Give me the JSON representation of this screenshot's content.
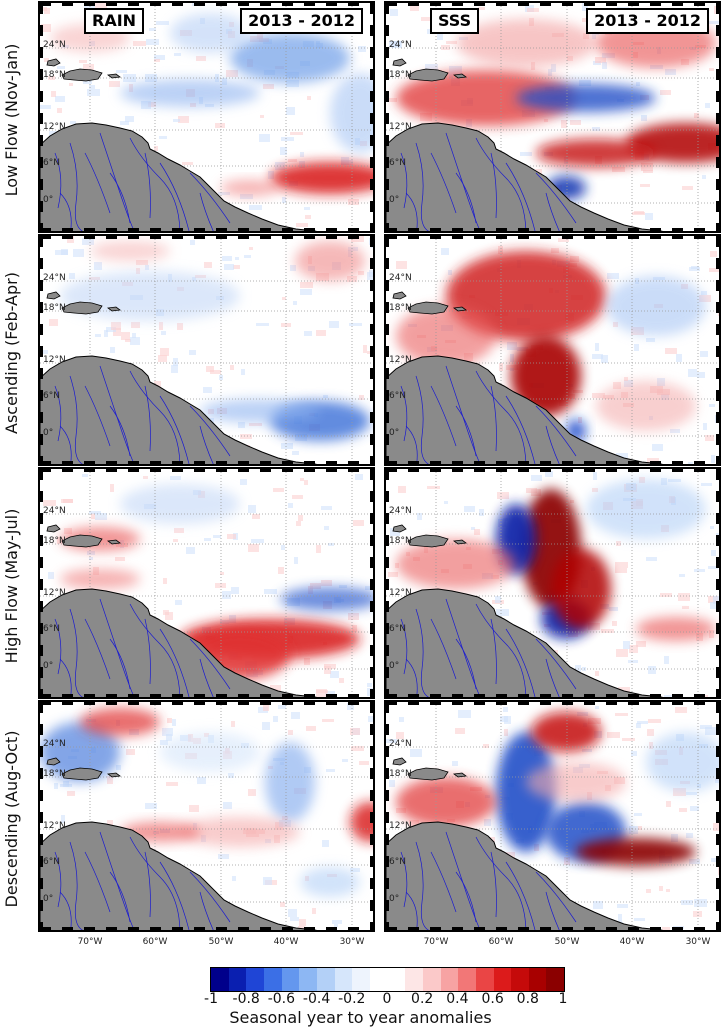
{
  "headers": {
    "rain": "RAIN",
    "sss": "SSS",
    "diff_left": "2013 - 2012",
    "diff_right": "2013 - 2012"
  },
  "rows": [
    {
      "label": "Low Flow (Nov-Jan)"
    },
    {
      "label": "Ascending (Feb-Apr)"
    },
    {
      "label": "High Flow (May-Jul)"
    },
    {
      "label": "Descending (Aug-Oct)"
    }
  ],
  "lat_labels": [
    "24°N",
    "18°N",
    "12°N",
    "6°N",
    "0°"
  ],
  "lon_labels": [
    "70°W",
    "60°W",
    "50°W",
    "40°W",
    "30°W"
  ],
  "colorbar": {
    "ticks": [
      "-1",
      "-0.8",
      "-0.6",
      "-0.4",
      "-0.2",
      "0",
      "0.2",
      "0.4",
      "0.6",
      "0.8",
      "1"
    ],
    "range": [
      -1,
      1
    ],
    "title": "Seasonal year to year anomalies",
    "colors": [
      "#00008b",
      "#0a1fb0",
      "#1f45d6",
      "#3b6fe6",
      "#6497ee",
      "#8db7f3",
      "#b3d0f7",
      "#d6e6fb",
      "#eef4fd",
      "#ffffff",
      "#ffffff",
      "#fde6e6",
      "#fbc9c9",
      "#f7a3a3",
      "#f27777",
      "#ea4545",
      "#dc1b1b",
      "#c50a0a",
      "#a80000",
      "#8b0000"
    ]
  },
  "style": {
    "land_color": "#8a8a8a",
    "river_color": "#1a1ad0",
    "grid_color": "#999999",
    "positive_color": "#d01010",
    "negative_color": "#1040c0"
  }
}
